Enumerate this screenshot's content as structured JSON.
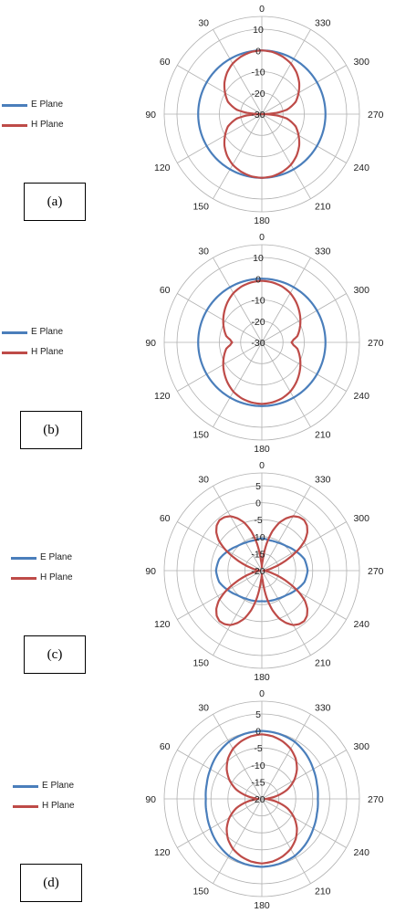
{
  "colors": {
    "e_plane": "#4A7EBB",
    "h_plane": "#BE4B48",
    "grid": "#B0B0B0",
    "text": "#222222"
  },
  "legend": {
    "e_label": "E Plane",
    "h_label": "H Plane"
  },
  "chart_data": [
    {
      "type": "polar",
      "panel_label": "(a)",
      "angle_labels": [
        "0",
        "30",
        "60",
        "90",
        "120",
        "150",
        "180",
        "210",
        "240",
        "270",
        "300",
        "330"
      ],
      "radial_ticks": [
        "10",
        "0",
        "-10",
        "-20",
        "-30"
      ],
      "rlim": [
        -30,
        10
      ],
      "angle_direction": "counterclockwise",
      "zero_location": "top",
      "legend_position": "left",
      "series": [
        {
          "name": "E Plane",
          "angles": [
            0,
            30,
            60,
            90,
            120,
            150,
            180,
            210,
            240,
            270,
            300,
            330
          ],
          "values": [
            0,
            0,
            0,
            0,
            0,
            0,
            0,
            0,
            0,
            0,
            0,
            0
          ]
        },
        {
          "name": "H Plane",
          "angles": [
            0,
            10,
            20,
            30,
            40,
            50,
            60,
            70,
            80,
            85,
            88,
            90,
            92,
            95,
            100,
            110,
            120,
            130,
            140,
            150,
            160,
            170,
            180,
            190,
            200,
            210,
            220,
            230,
            240,
            250,
            260,
            265,
            268,
            270,
            272,
            275,
            280,
            290,
            300,
            310,
            320,
            330,
            340,
            350
          ],
          "values": [
            0,
            -0.3,
            -1.2,
            -2.5,
            -4.5,
            -7,
            -10,
            -13,
            -18,
            -23,
            -28,
            -30,
            -28,
            -23,
            -18,
            -13,
            -10,
            -7,
            -4.5,
            -2.5,
            -1.2,
            -0.3,
            0,
            -0.3,
            -1.2,
            -2.5,
            -4.5,
            -7,
            -10,
            -13,
            -18,
            -23,
            -28,
            -30,
            -28,
            -23,
            -18,
            -13,
            -10,
            -7,
            -4.5,
            -2.5,
            -1.2,
            -0.3
          ]
        }
      ]
    },
    {
      "type": "polar",
      "panel_label": "(b)",
      "angle_labels": [
        "0",
        "30",
        "60",
        "90",
        "120",
        "150",
        "180",
        "210",
        "240",
        "270",
        "300",
        "330"
      ],
      "radial_ticks": [
        "10",
        "0",
        "-10",
        "-20",
        "-30"
      ],
      "rlim": [
        -30,
        10
      ],
      "angle_direction": "counterclockwise",
      "zero_location": "top",
      "legend_position": "left",
      "series": [
        {
          "name": "E Plane",
          "angles": [
            0,
            30,
            60,
            90,
            120,
            150,
            180,
            210,
            240,
            270,
            300,
            330
          ],
          "values": [
            0,
            0,
            0,
            0,
            0,
            0,
            0,
            0,
            0,
            0,
            0,
            0
          ]
        },
        {
          "name": "H Plane",
          "angles": [
            0,
            10,
            20,
            30,
            40,
            50,
            60,
            70,
            80,
            85,
            90,
            95,
            100,
            110,
            120,
            130,
            140,
            150,
            160,
            170,
            180,
            190,
            200,
            210,
            220,
            230,
            240,
            250,
            260,
            265,
            270,
            275,
            280,
            290,
            300,
            310,
            320,
            330,
            340,
            350
          ],
          "values": [
            -1,
            -1.3,
            -2,
            -3.2,
            -5,
            -7,
            -9,
            -11,
            -13,
            -15,
            -16,
            -15,
            -13,
            -11,
            -9,
            -7,
            -5,
            -3.2,
            -2,
            -1.3,
            -1,
            -1.3,
            -2,
            -3.2,
            -5,
            -7,
            -9,
            -11,
            -13,
            -15,
            -16,
            -15,
            -13,
            -11,
            -9,
            -7,
            -5,
            -3.2,
            -2,
            -1.3
          ]
        }
      ]
    },
    {
      "type": "polar",
      "panel_label": "(c)",
      "angle_labels": [
        "0",
        "30",
        "60",
        "90",
        "120",
        "150",
        "180",
        "210",
        "240",
        "270",
        "300",
        "330"
      ],
      "radial_ticks": [
        "5",
        "0",
        "-5",
        "-10",
        "-15",
        "-20"
      ],
      "rlim": [
        -20,
        5
      ],
      "angle_direction": "counterclockwise",
      "zero_location": "top",
      "legend_position": "left",
      "series": [
        {
          "name": "E Plane",
          "angles": [
            0,
            15,
            30,
            45,
            60,
            75,
            90,
            105,
            120,
            135,
            150,
            165,
            180,
            195,
            210,
            225,
            240,
            255,
            270,
            285,
            300,
            315,
            330,
            345
          ],
          "values": [
            -10.5,
            -10.8,
            -10.5,
            -9.8,
            -8.5,
            -7,
            -6.5,
            -7,
            -8.5,
            -9.8,
            -10.5,
            -10.8,
            -11,
            -10.8,
            -10.5,
            -9.8,
            -8.5,
            -7,
            -6.5,
            -7,
            -8.5,
            -9.8,
            -10.5,
            -10.8
          ]
        },
        {
          "name": "H Plane",
          "angles": [
            0,
            5,
            10,
            15,
            20,
            25,
            30,
            35,
            40,
            45,
            50,
            55,
            60,
            65,
            70,
            75,
            80,
            85,
            90,
            95,
            100,
            105,
            110,
            115,
            120,
            125,
            130,
            135,
            140,
            145,
            150,
            155,
            160,
            165,
            170,
            175,
            180,
            185,
            190,
            195,
            200,
            205,
            210,
            215,
            220,
            225,
            230,
            235,
            240,
            245,
            250,
            255,
            260,
            265,
            270,
            275,
            280,
            285,
            290,
            295,
            300,
            305,
            310,
            315,
            320,
            325,
            330,
            335,
            340,
            345,
            350,
            355
          ],
          "values": [
            -19,
            -17,
            -12,
            -8,
            -5,
            -3,
            -1.5,
            -0.8,
            -0.6,
            -1.2,
            -2.5,
            -4.5,
            -7.5,
            -11,
            -14,
            -16.5,
            -18,
            -19,
            -19.5,
            -19,
            -18,
            -16.5,
            -14,
            -11,
            -7.5,
            -4.5,
            -2.5,
            -1.2,
            -0.6,
            -0.8,
            -1.5,
            -3,
            -5,
            -8,
            -12,
            -17,
            -19,
            -17,
            -12,
            -8,
            -5,
            -3,
            -1.5,
            -0.8,
            -0.6,
            -1.2,
            -2.5,
            -4.5,
            -7.5,
            -11,
            -14,
            -16.5,
            -18,
            -19,
            -19.5,
            -19,
            -18,
            -16.5,
            -14,
            -11,
            -7.5,
            -4.5,
            -2.5,
            -1.2,
            -0.6,
            -0.8,
            -1.5,
            -3,
            -5,
            -8,
            -12,
            -17
          ]
        }
      ]
    },
    {
      "type": "polar",
      "panel_label": "(d)",
      "angle_labels": [
        "0",
        "30",
        "60",
        "90",
        "120",
        "150",
        "180",
        "210",
        "240",
        "270",
        "300",
        "330"
      ],
      "radial_ticks": [
        "5",
        "0",
        "-5",
        "-10",
        "-15",
        "-20"
      ],
      "rlim": [
        -20,
        5
      ],
      "angle_direction": "counterclockwise",
      "zero_location": "top",
      "legend_position": "left",
      "series": [
        {
          "name": "E Plane",
          "angles": [
            0,
            15,
            30,
            45,
            60,
            75,
            90,
            105,
            120,
            135,
            150,
            165,
            180,
            195,
            210,
            225,
            240,
            255,
            270,
            285,
            300,
            315,
            330,
            345
          ],
          "values": [
            0,
            -0.2,
            -0.6,
            -1.5,
            -2.5,
            -3.2,
            -3.5,
            -3.2,
            -2.5,
            -1.5,
            -0.6,
            -0.2,
            0,
            -0.2,
            -0.6,
            -1.5,
            -2.5,
            -3.2,
            -3.5,
            -3.2,
            -2.5,
            -1.5,
            -0.6,
            -0.2
          ]
        },
        {
          "name": "H Plane",
          "angles": [
            0,
            10,
            20,
            30,
            40,
            50,
            60,
            70,
            75,
            80,
            85,
            90,
            95,
            100,
            105,
            110,
            120,
            130,
            140,
            150,
            160,
            170,
            180,
            190,
            200,
            210,
            220,
            230,
            240,
            250,
            255,
            260,
            265,
            270,
            275,
            280,
            285,
            290,
            300,
            310,
            320,
            330,
            340,
            350
          ],
          "values": [
            -1,
            -1.3,
            -2,
            -3,
            -4.5,
            -6.5,
            -9,
            -12,
            -14,
            -16,
            -18,
            -19,
            -18,
            -16,
            -14,
            -12,
            -9,
            -6.5,
            -4.5,
            -3,
            -2,
            -1.3,
            -1,
            -1.3,
            -2,
            -3,
            -4.5,
            -6.5,
            -9,
            -12,
            -14,
            -16,
            -18,
            -19,
            -18,
            -16,
            -14,
            -12,
            -9,
            -6.5,
            -4.5,
            -3,
            -2,
            -1.3
          ]
        }
      ]
    }
  ]
}
